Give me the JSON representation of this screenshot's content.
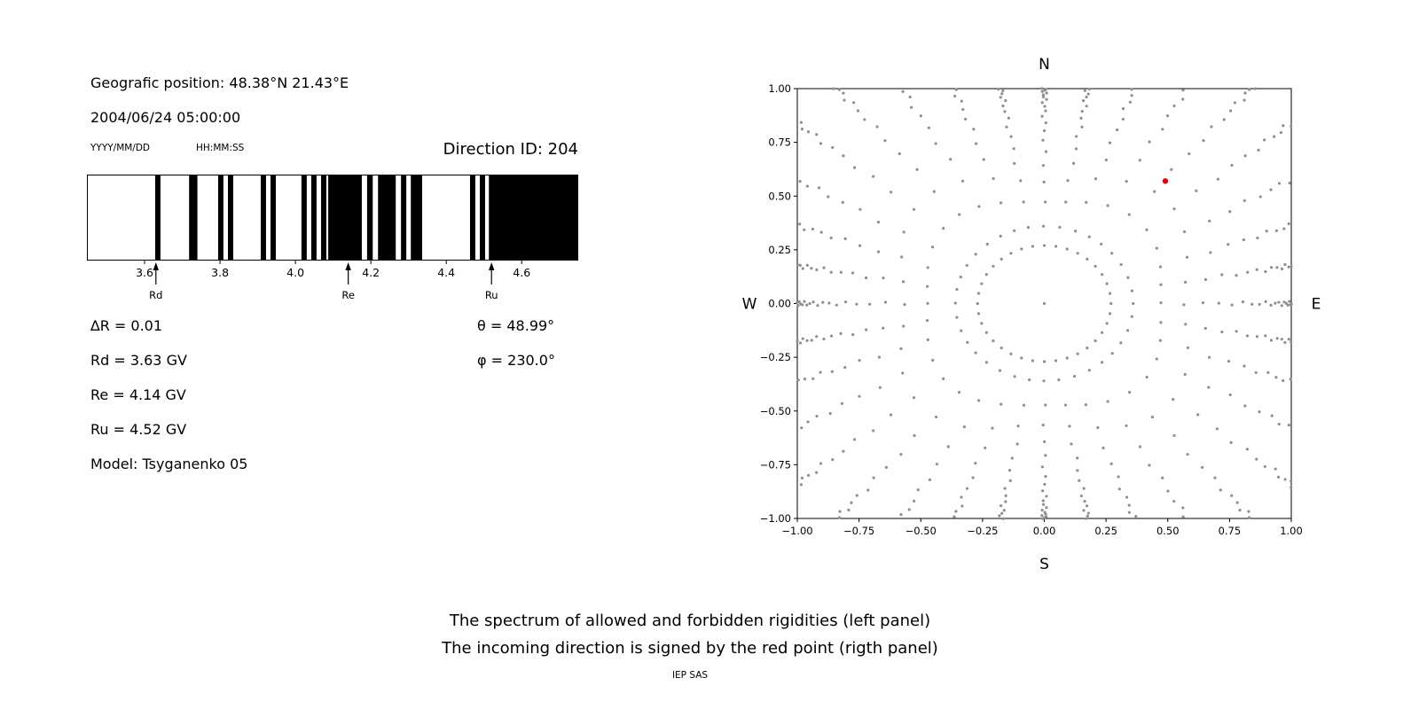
{
  "meta": {
    "position_label": "Geografic position: 48.38°N 21.43°E",
    "datetime": "2004/06/24 05:00:00",
    "date_format_label": "YYYY/MM/DD",
    "time_format_label": "HH:MM:SS",
    "direction_id_label": "Direction ID: 204"
  },
  "parameters": {
    "delta_r": "∆R = 0.01",
    "theta": "θ = 48.99°",
    "rd": "Rd = 3.63 GV",
    "phi": "φ = 230.0°",
    "re": "Re = 4.14 GV",
    "ru": "Ru = 4.52 GV",
    "model": "Model: Tsyganenko 05"
  },
  "captions": {
    "line1": "The spectrum of allowed and forbidden rigidities (left panel)",
    "line2": "The incoming direction is signed by the red point (rigth panel)",
    "credit": "IEP SAS"
  },
  "chart_data": [
    {
      "id": "rigidity_spectrum",
      "type": "bar",
      "title": "Direction ID: 204",
      "x_unit": "GV",
      "x_range": [
        3.447,
        4.75
      ],
      "xticks": [
        "3.6",
        "3.8",
        "4.0",
        "4.2",
        "4.4",
        "4.6"
      ],
      "band_color": "#000000",
      "background": "#ffffff",
      "forbidden_bands": [
        [
          3.628,
          3.642
        ],
        [
          3.718,
          3.74
        ],
        [
          3.795,
          3.809
        ],
        [
          3.821,
          3.835
        ],
        [
          3.908,
          3.922
        ],
        [
          3.934,
          3.948
        ],
        [
          4.016,
          4.03
        ],
        [
          4.042,
          4.056
        ],
        [
          4.068,
          4.082
        ],
        [
          4.087,
          4.176
        ],
        [
          4.19,
          4.205
        ],
        [
          4.219,
          4.266
        ],
        [
          4.28,
          4.294
        ],
        [
          4.306,
          4.336
        ],
        [
          4.463,
          4.477
        ],
        [
          4.489,
          4.503
        ],
        [
          4.513,
          4.75
        ]
      ],
      "markers": [
        {
          "label": "Rd",
          "value": 3.63
        },
        {
          "label": "Re",
          "value": 4.14
        },
        {
          "label": "Ru",
          "value": 4.52
        }
      ],
      "delta_r": 0.01
    },
    {
      "id": "incoming_direction",
      "type": "scatter",
      "compass_labels": {
        "top": "N",
        "bottom": "S",
        "left": "W",
        "right": "E"
      },
      "xlim": [
        -1,
        1
      ],
      "ylim": [
        -1,
        1
      ],
      "xticks": [
        "−1.00",
        "−0.75",
        "−0.50",
        "−0.25",
        "0.00",
        "0.25",
        "0.50",
        "0.75",
        "1.00"
      ],
      "yticks": [
        "1.00",
        "0.75",
        "0.50",
        "0.25",
        "0.00",
        "−0.25",
        "−0.50",
        "−0.75",
        "−1.00"
      ],
      "dot_color": "#8f8f8f",
      "red_color": "#e60000",
      "red_point": {
        "x": 0.49,
        "y": 0.57
      },
      "center_dot": true,
      "inner_ring": {
        "radius": 0.27,
        "count": 36
      },
      "rays": {
        "count": 36,
        "start_deg": 0,
        "step_deg": 10,
        "dots_per_ray": 20,
        "r_min": 0.36,
        "r_sat_base": 1.22,
        "r_sat_mod": 0.2,
        "decay": 0.83
      }
    }
  ]
}
